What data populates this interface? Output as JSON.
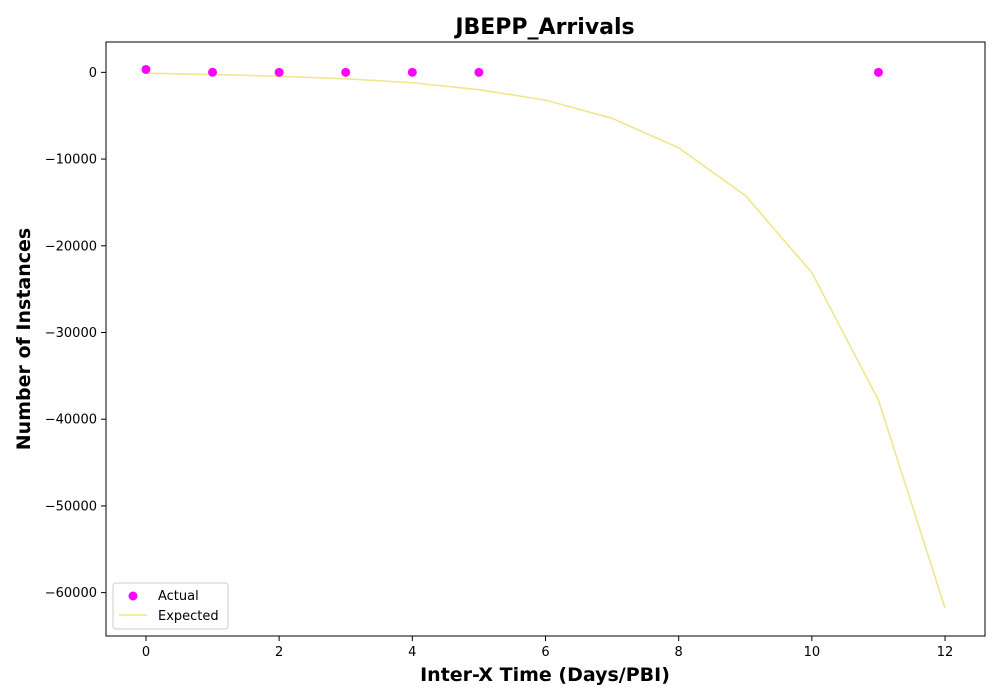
{
  "chart_data": {
    "type": "scatter",
    "title": "JBEPP_Arrivals",
    "xlabel": "Inter-X Time (Days/PBI)",
    "ylabel": "Number of Instances",
    "xlim": [
      -0.6,
      12.6
    ],
    "ylim": [
      -65000,
      3500
    ],
    "x_ticks": [
      0,
      2,
      4,
      6,
      8,
      10,
      12
    ],
    "y_ticks": [
      0,
      -10000,
      -20000,
      -30000,
      -40000,
      -50000,
      -60000
    ],
    "grid": false,
    "legend_position": "lower-left",
    "series": [
      {
        "name": "Actual",
        "kind": "scatter",
        "color": "#ff00ff",
        "points": [
          {
            "x": 0,
            "y": 330
          },
          {
            "x": 1,
            "y": 5
          },
          {
            "x": 2,
            "y": 2
          },
          {
            "x": 3,
            "y": 1
          },
          {
            "x": 4,
            "y": 1
          },
          {
            "x": 5,
            "y": 1
          },
          {
            "x": 11,
            "y": 1
          }
        ]
      },
      {
        "name": "Expected",
        "kind": "line",
        "color": "#f0e68c",
        "points": [
          {
            "x": 0,
            "y": -100
          },
          {
            "x": 1,
            "y": -250
          },
          {
            "x": 2,
            "y": -450
          },
          {
            "x": 3,
            "y": -750
          },
          {
            "x": 4,
            "y": -1200
          },
          {
            "x": 5,
            "y": -2000
          },
          {
            "x": 6,
            "y": -3200
          },
          {
            "x": 7,
            "y": -5300
          },
          {
            "x": 8,
            "y": -8700
          },
          {
            "x": 9,
            "y": -14200
          },
          {
            "x": 10,
            "y": -23100
          },
          {
            "x": 11,
            "y": -37800
          },
          {
            "x": 12,
            "y": -61800
          }
        ]
      }
    ]
  }
}
